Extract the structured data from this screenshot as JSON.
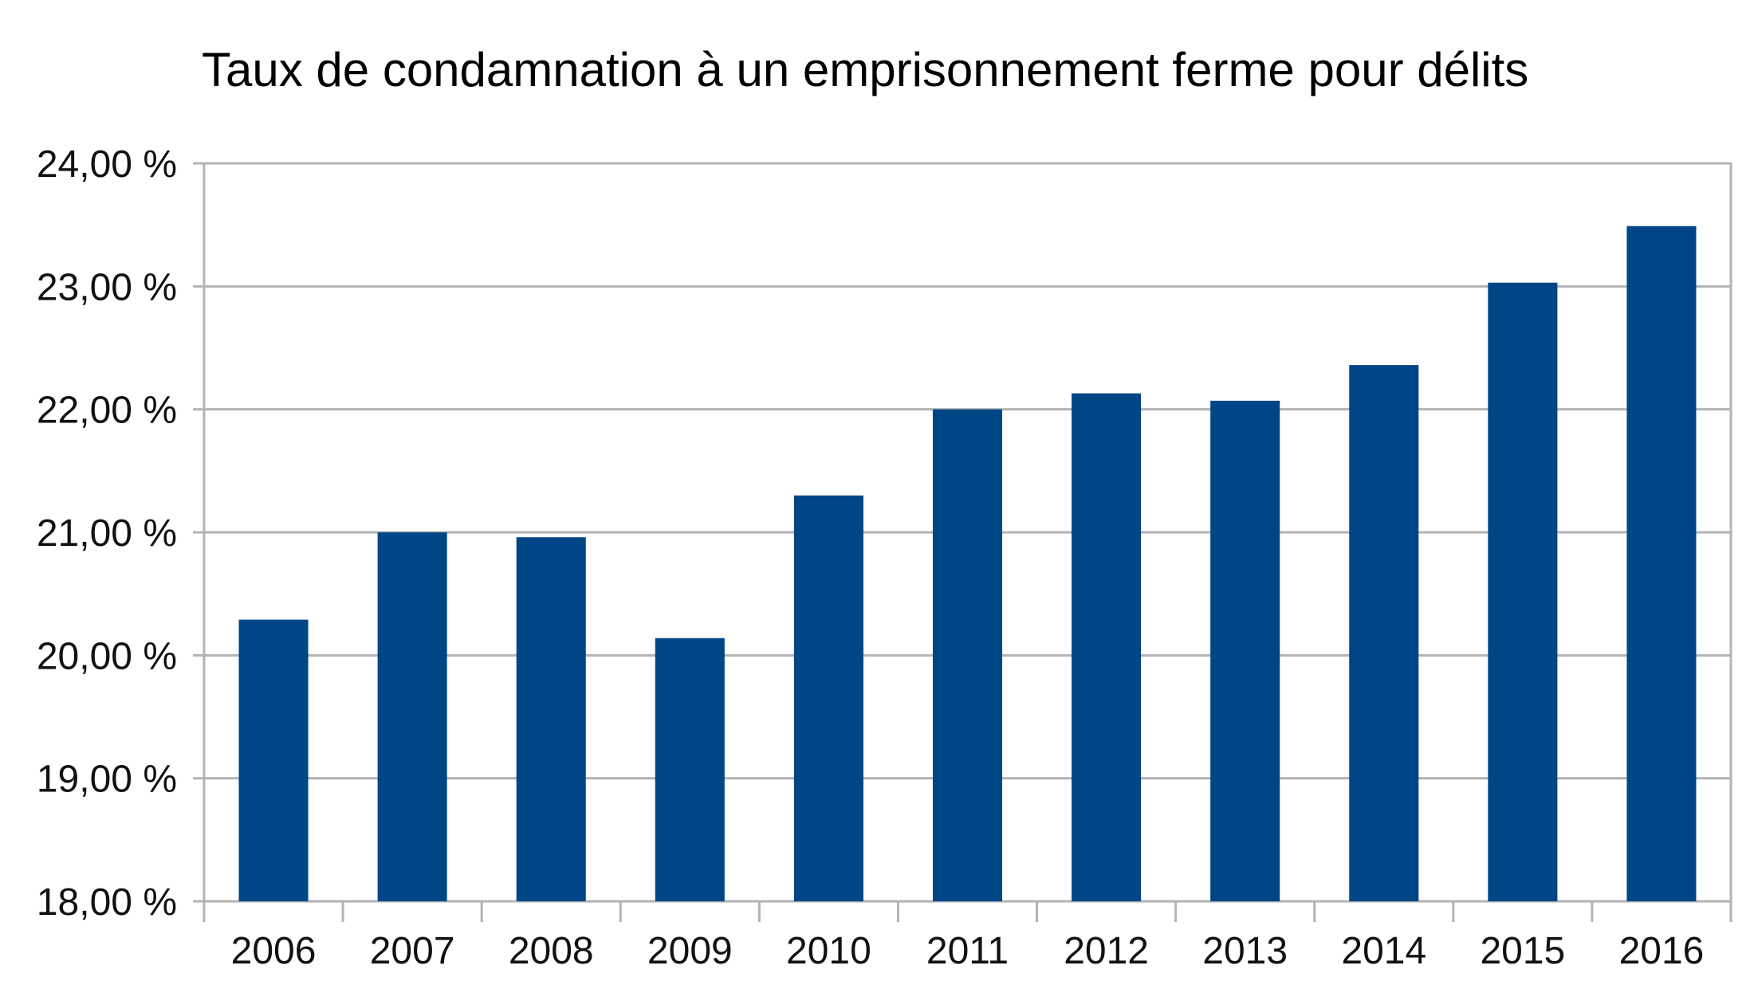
{
  "chart_data": {
    "type": "bar",
    "title": "Taux de condamnation à un emprisonnement ferme pour délits",
    "xlabel": "",
    "ylabel": "",
    "categories": [
      "2006",
      "2007",
      "2008",
      "2009",
      "2010",
      "2011",
      "2012",
      "2013",
      "2014",
      "2015",
      "2016"
    ],
    "series": [
      {
        "values": [
          20.29,
          21.0,
          20.96,
          20.14,
          21.3,
          22.0,
          22.13,
          22.07,
          22.36,
          23.03,
          23.49
        ]
      }
    ],
    "ylim": [
      18,
      24
    ],
    "yticks": [
      18,
      19,
      20,
      21,
      22,
      23,
      24
    ],
    "ytick_labels": [
      "18,00 %",
      "19,00 %",
      "20,00 %",
      "21,00 %",
      "22,00 %",
      "23,00 %",
      "24,00 %"
    ],
    "grid": true,
    "legend": "none",
    "colors": {
      "bar": "#004586",
      "grid": "#b3b3b3",
      "axis": "#b3b3b3",
      "text": "#111111"
    }
  }
}
